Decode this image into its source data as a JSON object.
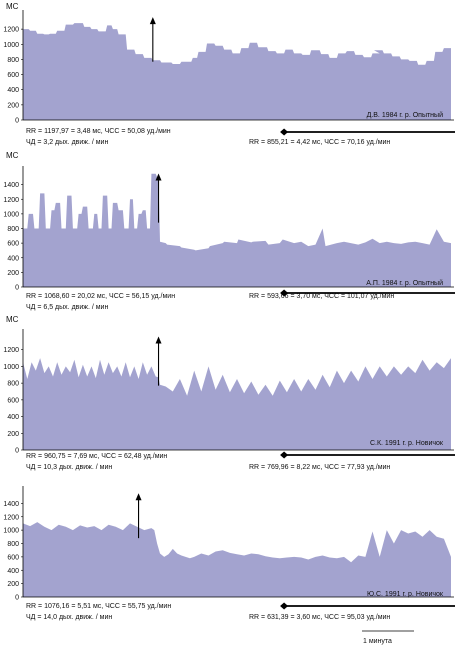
{
  "colors": {
    "fill": "#a3a3cf",
    "axis": "#000000",
    "text": "#111111"
  },
  "scale_bar": {
    "label": "1 минута"
  },
  "chart_data": [
    {
      "type": "area",
      "ylabel": "МС",
      "ylim": [
        0,
        1400
      ],
      "yticks": [
        0,
        200,
        400,
        600,
        800,
        1000,
        1200
      ],
      "tick_labels": [
        "0",
        "200",
        "400",
        "600",
        "800",
        "1000",
        "1200"
      ],
      "annotation": "Д.В. 1984 г. р. Опытный",
      "stats_before": [
        "RR = 1197,97 = 3,48 мс, ЧСС = 50,08 уд./мин",
        "ЧД = 3,2 дых. движ. / мин"
      ],
      "stats_after": "RR = 855,21 = 4,42 мс, ЧСС = 70,16 уд./мин",
      "x": [
        0,
        4,
        5,
        9,
        10,
        14,
        15,
        18,
        19,
        23,
        24,
        29,
        30,
        35,
        36,
        42,
        43,
        47,
        48,
        52,
        53,
        58,
        59,
        62,
        63,
        66,
        67,
        72,
        73,
        78,
        79,
        84,
        85,
        90,
        91,
        96,
        97,
        104,
        105,
        110,
        111,
        118,
        119,
        122,
        123,
        128,
        129,
        134,
        135,
        140,
        141,
        146,
        147,
        152,
        153,
        158,
        159,
        164,
        165,
        171,
        172,
        177,
        178,
        183,
        184,
        189,
        190,
        195,
        196,
        201,
        202,
        208,
        209,
        214,
        215,
        220,
        221,
        226,
        227,
        232,
        233,
        238,
        239,
        244,
        245,
        250,
        246,
        252,
        253,
        258,
        259,
        264,
        265,
        270,
        271,
        276,
        277,
        282,
        283,
        288,
        289,
        294,
        295,
        300
      ],
      "values": [
        1200,
        1200,
        1180,
        1180,
        1140,
        1140,
        1130,
        1130,
        1140,
        1140,
        1180,
        1180,
        1260,
        1260,
        1280,
        1280,
        1230,
        1230,
        1200,
        1200,
        1170,
        1170,
        1250,
        1250,
        1200,
        1200,
        1130,
        1130,
        930,
        930,
        870,
        870,
        820,
        820,
        790,
        790,
        760,
        760,
        740,
        740,
        770,
        770,
        820,
        820,
        900,
        900,
        1010,
        1010,
        980,
        980,
        930,
        930,
        880,
        880,
        950,
        950,
        1020,
        1020,
        960,
        960,
        910,
        910,
        880,
        880,
        930,
        930,
        880,
        880,
        860,
        860,
        920,
        920,
        870,
        870,
        820,
        820,
        880,
        880,
        910,
        910,
        860,
        860,
        830,
        830,
        880,
        880,
        920,
        920,
        880,
        880,
        840,
        840,
        800,
        800,
        780,
        780,
        730,
        730,
        780,
        780,
        900,
        900,
        950,
        950
      ],
      "arrow_at": 91,
      "bracket": [
        183,
        322
      ]
    },
    {
      "type": "area",
      "ylabel": "МС",
      "ylim": [
        0,
        1600
      ],
      "yticks": [
        0,
        200,
        400,
        600,
        800,
        1000,
        1200,
        1400
      ],
      "tick_labels": [
        "0",
        "200",
        "400",
        "600",
        "800",
        "1000",
        "1200",
        "1400"
      ],
      "annotation": "А.П. 1984 г. р. Опытный",
      "stats_before": [
        "RR = 1068,60 = 20,02 мс, ЧСС = 56,15 уд./мин",
        "ЧД = 6,5 дых. движ. / мин"
      ],
      "stats_after": "RR = 593,66 = 3,70 мс, ЧСС = 101,07 уд./мин",
      "x": [
        0,
        3,
        4,
        7,
        8,
        11,
        12,
        15,
        16,
        19,
        20,
        22,
        23,
        26,
        27,
        30,
        31,
        34,
        35,
        38,
        39,
        41,
        42,
        45,
        46,
        49,
        50,
        52,
        53,
        55,
        56,
        59,
        60,
        62,
        63,
        66,
        67,
        70,
        71,
        74,
        75,
        77,
        78,
        80,
        81,
        83,
        84,
        86,
        87,
        89,
        90,
        93,
        94,
        95,
        96,
        100,
        101,
        110,
        111,
        120,
        121,
        130,
        131,
        140,
        141,
        150,
        151,
        160,
        161,
        170,
        172,
        180,
        182,
        190,
        195,
        200,
        205,
        210,
        212,
        220,
        225,
        235,
        240,
        245,
        250,
        255,
        260,
        265,
        270,
        275,
        280,
        285,
        290,
        295,
        300
      ],
      "values": [
        800,
        800,
        1000,
        1000,
        800,
        800,
        1280,
        1280,
        800,
        800,
        1050,
        1050,
        1150,
        1150,
        800,
        800,
        1250,
        1250,
        800,
        800,
        1000,
        1000,
        1100,
        1100,
        800,
        800,
        1000,
        1000,
        800,
        800,
        1250,
        1250,
        800,
        800,
        1150,
        1150,
        1050,
        1050,
        800,
        800,
        1200,
        1200,
        800,
        800,
        1000,
        1000,
        1050,
        1050,
        800,
        800,
        1550,
        1550,
        1500,
        1500,
        620,
        600,
        580,
        560,
        540,
        510,
        500,
        530,
        560,
        600,
        620,
        600,
        650,
        610,
        620,
        630,
        580,
        600,
        650,
        600,
        620,
        560,
        580,
        800,
        560,
        600,
        620,
        580,
        610,
        660,
        600,
        620,
        600,
        590,
        610,
        620,
        600,
        580,
        790,
        620,
        600
      ],
      "arrow_at": 95,
      "bracket": [
        183,
        322
      ]
    },
    {
      "type": "area",
      "ylabel": "МС",
      "ylim": [
        0,
        1400
      ],
      "yticks": [
        0,
        200,
        400,
        600,
        800,
        1000,
        1200
      ],
      "tick_labels": [
        "0",
        "200",
        "400",
        "600",
        "800",
        "1000",
        "1200"
      ],
      "annotation": "С.К. 1991 г. р. Новичок",
      "stats_before": [
        "RR = 960,75 = 7,69 мс, ЧСС = 62,48 уд./мин",
        "ЧД = 10,3 дых. движ. / мин"
      ],
      "stats_after": "RR = 769,96 = 8,22 мс, ЧСС = 77,93 уд./мин",
      "x": [
        0,
        3,
        6,
        9,
        12,
        15,
        18,
        21,
        24,
        27,
        30,
        33,
        36,
        39,
        42,
        45,
        48,
        51,
        54,
        57,
        60,
        63,
        66,
        69,
        72,
        75,
        78,
        81,
        84,
        87,
        90,
        93,
        95,
        96,
        100,
        105,
        110,
        115,
        120,
        125,
        130,
        135,
        140,
        145,
        150,
        155,
        160,
        165,
        170,
        175,
        180,
        185,
        190,
        195,
        200,
        205,
        210,
        215,
        220,
        225,
        230,
        235,
        240,
        245,
        250,
        255,
        260,
        265,
        270,
        275,
        280,
        285,
        290,
        295,
        300
      ],
      "values": [
        1050,
        850,
        1050,
        950,
        1100,
        920,
        1000,
        880,
        1050,
        900,
        1000,
        930,
        1080,
        870,
        1020,
        880,
        1000,
        860,
        1080,
        900,
        1050,
        920,
        1000,
        880,
        1050,
        870,
        1000,
        850,
        1050,
        900,
        1000,
        880,
        870,
        780,
        760,
        700,
        850,
        650,
        950,
        700,
        1000,
        720,
        900,
        690,
        850,
        680,
        820,
        660,
        780,
        650,
        830,
        690,
        850,
        700,
        850,
        720,
        900,
        750,
        950,
        800,
        950,
        820,
        1000,
        850,
        1000,
        880,
        1000,
        900,
        1000,
        920,
        1080,
        950,
        1050,
        980,
        1100
      ],
      "arrow_at": 95,
      "bracket": [
        183,
        322
      ]
    },
    {
      "type": "area",
      "ylabel": "",
      "ylim": [
        0,
        1600
      ],
      "yticks": [
        0,
        200,
        400,
        600,
        800,
        1000,
        1200,
        1400
      ],
      "tick_labels": [
        "0",
        "200",
        "400",
        "600",
        "800",
        "1000",
        "1200",
        "1400"
      ],
      "annotation": "Ю.С. 1991 г. р. Новичок",
      "stats_before": [
        "RR = 1076,16 = 5,51 мс, ЧСС = 55,75 уд./мин",
        "ЧД = 14,0 дых. движ. / мин"
      ],
      "stats_after": "RR = 631,39 = 3,60 мс, ЧСС = 95,03 уд./мин",
      "x": [
        0,
        5,
        10,
        15,
        20,
        25,
        30,
        35,
        40,
        45,
        50,
        55,
        60,
        65,
        70,
        75,
        80,
        85,
        90,
        92,
        94,
        96,
        99,
        102,
        105,
        108,
        111,
        114,
        117,
        120,
        125,
        130,
        135,
        140,
        145,
        150,
        155,
        160,
        165,
        170,
        175,
        180,
        185,
        190,
        195,
        200,
        205,
        210,
        215,
        220,
        225,
        230,
        235,
        240,
        245,
        250,
        255,
        260,
        265,
        270,
        275,
        280,
        285,
        290,
        295,
        300
      ],
      "values": [
        1100,
        1060,
        1120,
        1050,
        1000,
        1080,
        1050,
        1000,
        1070,
        1040,
        1060,
        1000,
        1080,
        1050,
        1000,
        1100,
        1050,
        1000,
        1030,
        1000,
        800,
        650,
        600,
        640,
        720,
        650,
        620,
        600,
        580,
        600,
        650,
        620,
        680,
        700,
        660,
        640,
        620,
        650,
        640,
        610,
        590,
        580,
        590,
        600,
        590,
        560,
        600,
        620,
        590,
        580,
        600,
        520,
        620,
        600,
        980,
        600,
        1000,
        800,
        1000,
        950,
        980,
        900,
        1000,
        900,
        870,
        600
      ],
      "arrow_at": 81,
      "bracket": [
        183,
        322
      ]
    }
  ]
}
